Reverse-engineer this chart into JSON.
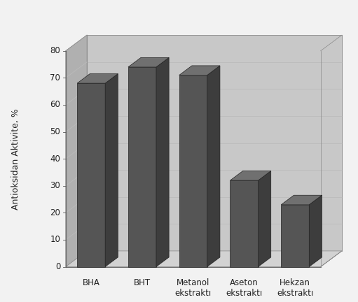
{
  "categories": [
    "BHA",
    "BHT",
    "Metanol\nekstraktı",
    "Aseton\nekstraktı",
    "Hekzan\nekstraktı"
  ],
  "values": [
    68,
    74,
    71,
    32,
    23
  ],
  "bar_color_front": "#555555",
  "bar_color_side": "#3d3d3d",
  "bar_color_top": "#707070",
  "wall_color": "#c8c8c8",
  "wall_color_top": "#b0b0b0",
  "floor_color": "#d2d2d2",
  "outer_bg": "#f2f2f2",
  "grid_color": "#bbbbbb",
  "ylabel": "Antioksidan Aktivite, %",
  "ymax": 80,
  "yticks": [
    0,
    10,
    20,
    30,
    40,
    50,
    60,
    70,
    80
  ],
  "label_fontsize": 9,
  "tick_fontsize": 8.5,
  "cat_fontsize": 8.5
}
